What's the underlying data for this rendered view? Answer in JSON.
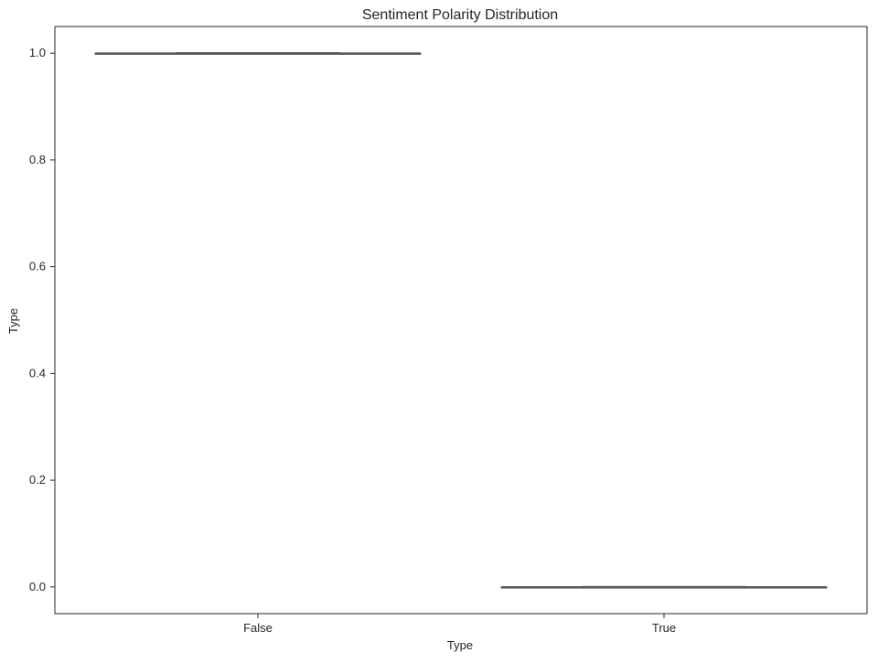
{
  "chart_data": {
    "type": "box",
    "title": "Sentiment Polarity Distribution",
    "xlabel": "Type",
    "ylabel": "Type",
    "categories": [
      "False",
      "True"
    ],
    "boxes": [
      {
        "category": "False",
        "min": 1.0,
        "q1": 1.0,
        "median": 1.0,
        "q3": 1.0,
        "max": 1.0
      },
      {
        "category": "True",
        "min": 0.0,
        "q1": 0.0,
        "median": 0.0,
        "q3": 0.0,
        "max": 0.0
      }
    ],
    "ylim": [
      -0.05,
      1.05
    ],
    "yticks": [
      "0.0",
      "0.2",
      "0.4",
      "0.6",
      "0.8",
      "1.0"
    ],
    "grid": false,
    "colors": {
      "box_line": "#595959",
      "axis": "#262626"
    }
  }
}
